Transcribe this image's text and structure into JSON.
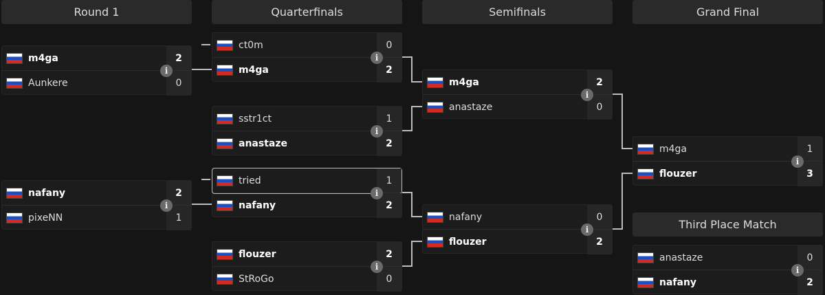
{
  "headers": {
    "round1": "Round 1",
    "quarterfinals": "Quarterfinals",
    "semifinals": "Semifinals",
    "grand_final": "Grand Final",
    "third_place": "Third Place Match"
  },
  "icons": {
    "flag": "russia-flag-icon",
    "info": "info-icon"
  },
  "colors": {
    "background": "#151515",
    "match": "#1c1c1c",
    "connector": "#bdbdbd"
  },
  "matches": [
    {
      "id": "r1-1",
      "players": [
        {
          "name": "m4ga",
          "score": "2",
          "winner": true
        },
        {
          "name": "Aunkere",
          "score": "0",
          "winner": false
        }
      ]
    },
    {
      "id": "r1-2",
      "players": [
        {
          "name": "nafany",
          "score": "2",
          "winner": true
        },
        {
          "name": "pixeNN",
          "score": "1",
          "winner": false
        }
      ]
    },
    {
      "id": "qf-1",
      "players": [
        {
          "name": "ct0m",
          "score": "0",
          "winner": false
        },
        {
          "name": "m4ga",
          "score": "2",
          "winner": true
        }
      ]
    },
    {
      "id": "qf-2",
      "players": [
        {
          "name": "sstr1ct",
          "score": "1",
          "winner": false
        },
        {
          "name": "anastaze",
          "score": "2",
          "winner": true
        }
      ]
    },
    {
      "id": "qf-3",
      "players": [
        {
          "name": "tried",
          "score": "1",
          "winner": false
        },
        {
          "name": "nafany",
          "score": "2",
          "winner": true
        }
      ]
    },
    {
      "id": "qf-4",
      "players": [
        {
          "name": "flouzer",
          "score": "2",
          "winner": true
        },
        {
          "name": "StRoGo",
          "score": "0",
          "winner": false
        }
      ]
    },
    {
      "id": "sf-1",
      "players": [
        {
          "name": "m4ga",
          "score": "2",
          "winner": true
        },
        {
          "name": "anastaze",
          "score": "0",
          "winner": false
        }
      ]
    },
    {
      "id": "sf-2",
      "players": [
        {
          "name": "nafany",
          "score": "0",
          "winner": false
        },
        {
          "name": "flouzer",
          "score": "2",
          "winner": true
        }
      ]
    },
    {
      "id": "gf",
      "players": [
        {
          "name": "m4ga",
          "score": "1",
          "winner": false
        },
        {
          "name": "flouzer",
          "score": "3",
          "winner": true
        }
      ]
    },
    {
      "id": "3rd",
      "players": [
        {
          "name": "anastaze",
          "score": "0",
          "winner": false
        },
        {
          "name": "nafany",
          "score": "2",
          "winner": true
        }
      ]
    }
  ]
}
